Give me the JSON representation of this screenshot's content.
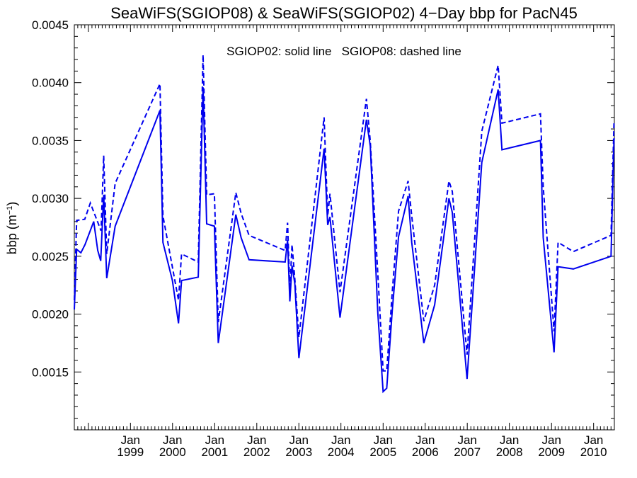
{
  "chart_data": {
    "type": "line",
    "title": "SeaWiFS(SGIOP08) & SeaWiFS(SGIOP02) 4−Day bbp for PacN45",
    "ylabel": {
      "main": "bbp (m",
      "sup": "−1",
      "close": ")"
    },
    "annotation": "SGIOP02: solid line   SGIOP08: dashed line",
    "ylim": [
      0.001,
      0.0045
    ],
    "xlim": [
      "1997-09-01",
      "2010-06-30"
    ],
    "yticks": [
      {
        "value": 0.0015,
        "label": "0.0015"
      },
      {
        "value": 0.002,
        "label": "0.0020"
      },
      {
        "value": 0.0025,
        "label": "0.0025"
      },
      {
        "value": 0.003,
        "label": "0.0030"
      },
      {
        "value": 0.0035,
        "label": "0.0035"
      },
      {
        "value": 0.004,
        "label": "0.0040"
      },
      {
        "value": 0.0045,
        "label": "0.0045"
      }
    ],
    "xticks": [
      {
        "date": "1999-01-01",
        "month": "Jan",
        "year": "1999"
      },
      {
        "date": "2000-01-01",
        "month": "Jan",
        "year": "2000"
      },
      {
        "date": "2001-01-01",
        "month": "Jan",
        "year": "2001"
      },
      {
        "date": "2002-01-01",
        "month": "Jan",
        "year": "2002"
      },
      {
        "date": "2003-01-01",
        "month": "Jan",
        "year": "2003"
      },
      {
        "date": "2004-01-01",
        "month": "Jan",
        "year": "2004"
      },
      {
        "date": "2005-01-01",
        "month": "Jan",
        "year": "2005"
      },
      {
        "date": "2006-01-01",
        "month": "Jan",
        "year": "2006"
      },
      {
        "date": "2007-01-01",
        "month": "Jan",
        "year": "2007"
      },
      {
        "date": "2008-01-01",
        "month": "Jan",
        "year": "2008"
      },
      {
        "date": "2009-01-01",
        "month": "Jan",
        "year": "2009"
      },
      {
        "date": "2010-01-01",
        "month": "Jan",
        "year": "2010"
      }
    ],
    "series": [
      {
        "name": "SGIOP02",
        "style": "solid",
        "color": "#0000ee",
        "x": [
          "1997-09-01",
          "1997-09-21",
          "1997-10-28",
          "1997-12-03",
          "1998-02-16",
          "1998-03-23",
          "1998-04-18",
          "1998-05-14",
          "1998-06-09",
          "1998-08-21",
          "1999-09-14",
          "1999-10-10",
          "1999-12-31",
          "2000-02-22",
          "2000-03-19",
          "2000-08-11",
          "2000-09-22",
          "2000-10-23",
          "2000-12-29",
          "2001-02-01",
          "2001-07-03",
          "2001-08-18",
          "2001-10-26",
          "2002-09-04",
          "2002-09-25",
          "2002-10-15",
          "2002-11-03",
          "2002-11-27",
          "2003-01-01",
          "2003-08-08",
          "2003-09-08",
          "2003-09-28",
          "2003-12-24",
          "2004-08-09",
          "2004-09-12",
          "2004-11-16",
          "2005-01-01",
          "2005-02-01",
          "2005-03-21",
          "2005-05-15",
          "2005-08-06",
          "2005-09-06",
          "2005-12-20",
          "2006-03-24",
          "2006-07-26",
          "2006-08-24",
          "2006-12-30",
          "2007-05-07",
          "2007-09-26",
          "2007-10-29",
          "2008-09-27",
          "2008-10-21",
          "2009-01-23",
          "2009-02-27",
          "2009-07-09",
          "2010-06-01",
          "2010-06-27",
          "2010-06-30"
        ],
        "values": [
          0.00204,
          0.00256,
          0.00253,
          0.0026,
          0.0028,
          0.00255,
          0.00246,
          0.00303,
          0.00231,
          0.00276,
          0.00376,
          0.00262,
          0.00229,
          0.00192,
          0.00229,
          0.00232,
          0.00396,
          0.00278,
          0.00276,
          0.00175,
          0.00286,
          0.00266,
          0.00247,
          0.00245,
          0.00264,
          0.00211,
          0.00242,
          0.00226,
          0.00162,
          0.00343,
          0.00277,
          0.00284,
          0.00197,
          0.00368,
          0.00345,
          0.00201,
          0.00133,
          0.00136,
          0.00203,
          0.00267,
          0.00302,
          0.00262,
          0.00175,
          0.00208,
          0.003,
          0.00288,
          0.00144,
          0.00331,
          0.00394,
          0.00342,
          0.0035,
          0.00266,
          0.00167,
          0.00241,
          0.00239,
          0.0025,
          0.00352,
          0.00351
        ]
      },
      {
        "name": "SGIOP08",
        "style": "dashed",
        "color": "#0000ee",
        "x": [
          "1997-09-01",
          "1997-09-21",
          "1997-12-01",
          "1998-01-18",
          "1998-04-21",
          "1998-05-14",
          "1998-06-09",
          "1998-08-21",
          "1999-09-14",
          "1999-10-10",
          "2000-02-22",
          "2000-03-19",
          "2000-08-11",
          "2000-09-22",
          "2000-10-23",
          "2000-12-29",
          "2001-02-01",
          "2001-07-03",
          "2001-08-18",
          "2001-10-26",
          "2002-09-04",
          "2002-09-25",
          "2002-10-15",
          "2002-11-03",
          "2002-11-27",
          "2003-01-01",
          "2003-08-08",
          "2003-09-08",
          "2003-09-28",
          "2003-12-24",
          "2004-08-09",
          "2004-09-12",
          "2004-11-16",
          "2005-01-01",
          "2005-02-01",
          "2005-03-21",
          "2005-05-15",
          "2005-08-06",
          "2005-09-06",
          "2005-12-20",
          "2006-03-24",
          "2006-07-26",
          "2006-08-24",
          "2006-12-30",
          "2007-05-07",
          "2007-09-26",
          "2007-10-29",
          "2008-09-27",
          "2008-10-21",
          "2009-01-23",
          "2009-02-27",
          "2009-07-09",
          "2010-06-01",
          "2010-06-27",
          "2010-06-30"
        ],
        "values": [
          0.00212,
          0.00281,
          0.00282,
          0.00296,
          0.00272,
          0.00337,
          0.00252,
          0.00313,
          0.00399,
          0.00285,
          0.00212,
          0.00252,
          0.00245,
          0.00424,
          0.00303,
          0.00304,
          0.00193,
          0.00305,
          0.00287,
          0.00268,
          0.00255,
          0.00279,
          0.00221,
          0.0026,
          0.0023,
          0.0018,
          0.0037,
          0.00285,
          0.00304,
          0.00219,
          0.00386,
          0.00349,
          0.00235,
          0.00151,
          0.00151,
          0.00219,
          0.00289,
          0.00315,
          0.00285,
          0.00194,
          0.00225,
          0.00315,
          0.00306,
          0.00165,
          0.00358,
          0.00415,
          0.00365,
          0.00373,
          0.0031,
          0.00185,
          0.00262,
          0.00254,
          0.00268,
          0.00366,
          0.00365
        ]
      }
    ]
  }
}
